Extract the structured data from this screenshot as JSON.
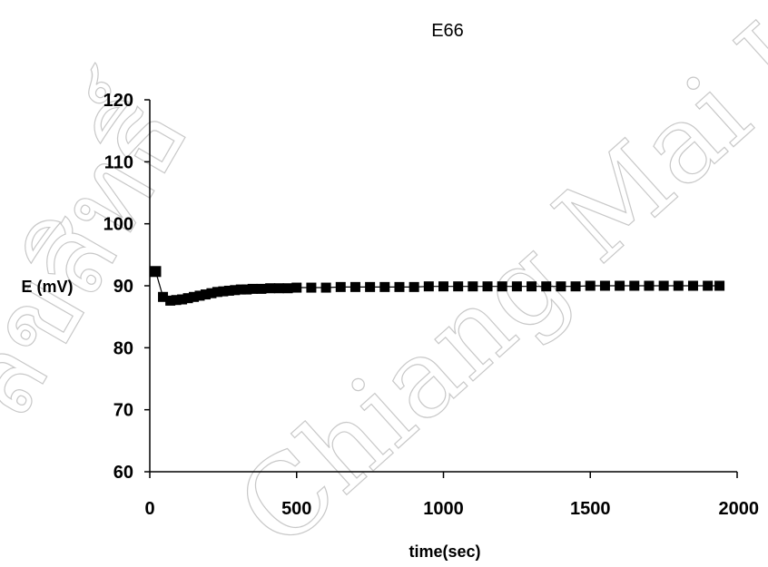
{
  "chart_data": {
    "type": "line",
    "title": "E66",
    "xlabel": "time(sec)",
    "ylabel": "E (mV)",
    "xlim": [
      0,
      2000
    ],
    "ylim": [
      60,
      120
    ],
    "xticks": [
      "0",
      "500",
      "1000",
      "1500",
      "2000"
    ],
    "yticks": [
      "60",
      "70",
      "80",
      "90",
      "100",
      "110",
      "120"
    ],
    "grid": false,
    "legend": "none",
    "series": [
      {
        "x": [
          20,
          45,
          70,
          90,
          110,
          130,
          150,
          170,
          190,
          210,
          230,
          250,
          270,
          290,
          310,
          330,
          350,
          380,
          410,
          440,
          470,
          500,
          550,
          600,
          650,
          700,
          750,
          800,
          850,
          900,
          950,
          1000,
          1050,
          1100,
          1150,
          1200,
          1250,
          1300,
          1350,
          1400,
          1450,
          1500,
          1550,
          1600,
          1650,
          1700,
          1750,
          1800,
          1850,
          1900,
          1940
        ],
        "y": [
          92.3,
          88.2,
          87.6,
          87.7,
          87.8,
          88.0,
          88.2,
          88.4,
          88.6,
          88.8,
          89.0,
          89.1,
          89.2,
          89.3,
          89.4,
          89.4,
          89.5,
          89.5,
          89.6,
          89.6,
          89.6,
          89.7,
          89.7,
          89.7,
          89.8,
          89.8,
          89.8,
          89.8,
          89.8,
          89.8,
          89.9,
          89.9,
          89.9,
          89.9,
          89.9,
          89.9,
          89.9,
          89.9,
          89.9,
          89.9,
          89.9,
          90.0,
          90.0,
          90.0,
          90.0,
          90.0,
          90.0,
          90.0,
          90.0,
          90.0,
          90.0
        ]
      }
    ]
  },
  "watermark": {
    "lines": [
      "ลิขสิทธิ์",
      "Chiang Mai Univ"
    ]
  }
}
